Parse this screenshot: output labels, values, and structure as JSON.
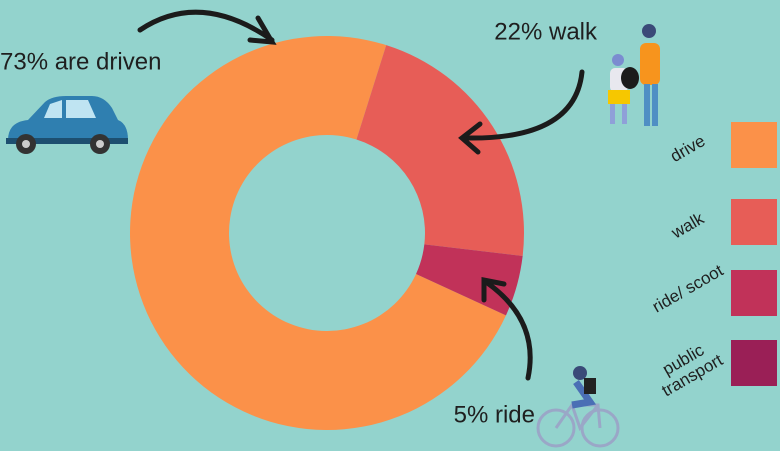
{
  "chart_data": {
    "type": "pie",
    "categories": [
      "drive",
      "walk",
      "ride/ scoot",
      "public transport"
    ],
    "values": [
      73,
      22,
      5,
      0
    ],
    "value_labels": [
      "73% are driven",
      "22% walk",
      "5% ride",
      null
    ],
    "colors": [
      "#fb9149",
      "#e75d57",
      "#c13259",
      "#9a1f56"
    ],
    "donut": true,
    "legend": "right"
  }
}
